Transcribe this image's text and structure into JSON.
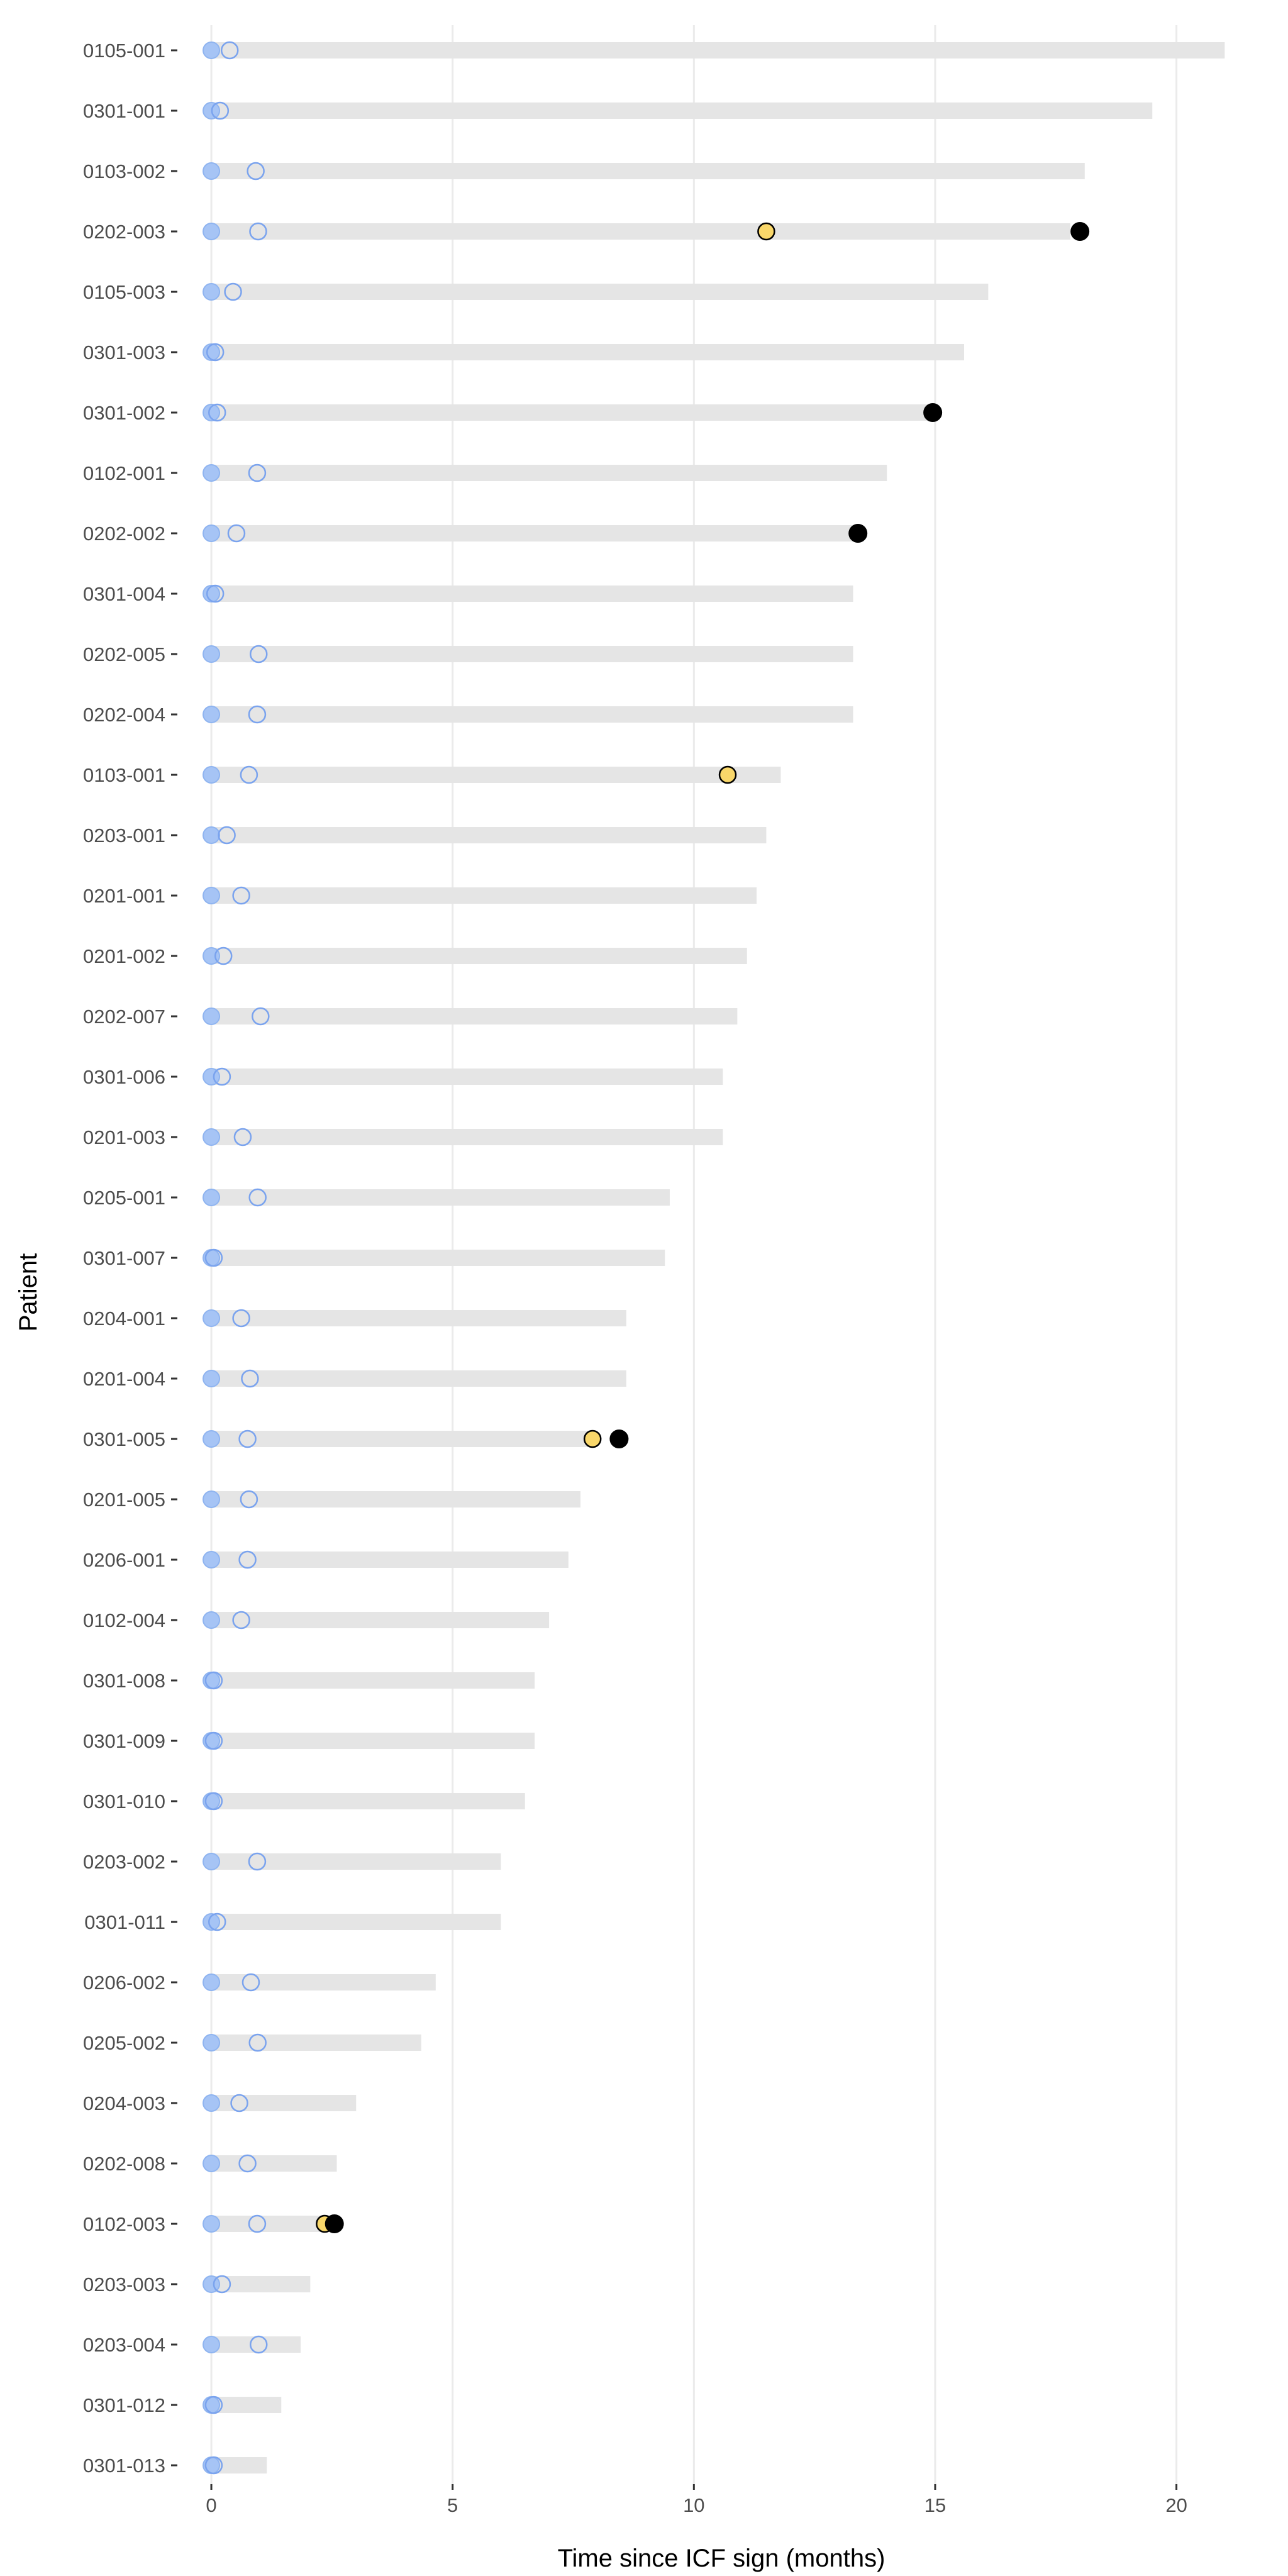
{
  "chart_data": {
    "type": "swimmer",
    "xlabel": "Time since ICF sign (months)",
    "ylabel": "Patient",
    "xlim": [
      -0.6,
      21.1
    ],
    "xticks": [
      0,
      5,
      10,
      15,
      20
    ],
    "grid": "vertical major",
    "legend": "none",
    "colors": {
      "bar": "#e5e5e5",
      "filled_marker": "#a6c4f5",
      "filled_marker_edge": "#8fb4f0",
      "open_marker_edge": "#7aa3ee",
      "event_yellow": "#f9d76a",
      "event_black": "#000000",
      "grid": "#ebebeb",
      "tick_text": "#4d4d4d"
    },
    "patients": [
      {
        "id": "0105-001",
        "duration": 21.0,
        "open_marker": 0.38
      },
      {
        "id": "0301-001",
        "duration": 19.5,
        "open_marker": 0.18
      },
      {
        "id": "0103-002",
        "duration": 18.1,
        "open_marker": 0.92
      },
      {
        "id": "0202-003",
        "duration": 17.8,
        "open_marker": 0.97,
        "yellow": 11.5,
        "black": 18.0
      },
      {
        "id": "0105-003",
        "duration": 16.1,
        "open_marker": 0.45
      },
      {
        "id": "0301-003",
        "duration": 15.6,
        "open_marker": 0.08
      },
      {
        "id": "0301-002",
        "duration": 14.9,
        "open_marker": 0.12,
        "black": 14.95
      },
      {
        "id": "0102-001",
        "duration": 14.0,
        "open_marker": 0.95
      },
      {
        "id": "0202-002",
        "duration": 13.3,
        "open_marker": 0.52,
        "black": 13.4
      },
      {
        "id": "0301-004",
        "duration": 13.3,
        "open_marker": 0.08
      },
      {
        "id": "0202-005",
        "duration": 13.3,
        "open_marker": 0.98
      },
      {
        "id": "0202-004",
        "duration": 13.3,
        "open_marker": 0.95
      },
      {
        "id": "0103-001",
        "duration": 11.8,
        "open_marker": 0.78,
        "yellow": 10.7
      },
      {
        "id": "0203-001",
        "duration": 11.5,
        "open_marker": 0.32
      },
      {
        "id": "0201-001",
        "duration": 11.3,
        "open_marker": 0.62
      },
      {
        "id": "0201-002",
        "duration": 11.1,
        "open_marker": 0.25
      },
      {
        "id": "0202-007",
        "duration": 10.9,
        "open_marker": 1.02
      },
      {
        "id": "0301-006",
        "duration": 10.6,
        "open_marker": 0.22
      },
      {
        "id": "0201-003",
        "duration": 10.6,
        "open_marker": 0.65
      },
      {
        "id": "0205-001",
        "duration": 9.5,
        "open_marker": 0.96
      },
      {
        "id": "0301-007",
        "duration": 9.4,
        "open_marker": 0.05
      },
      {
        "id": "0204-001",
        "duration": 8.6,
        "open_marker": 0.62
      },
      {
        "id": "0201-004",
        "duration": 8.6,
        "open_marker": 0.8
      },
      {
        "id": "0301-005",
        "duration": 7.8,
        "open_marker": 0.75,
        "yellow": 7.9,
        "black": 8.45
      },
      {
        "id": "0201-005",
        "duration": 7.65,
        "open_marker": 0.78
      },
      {
        "id": "0206-001",
        "duration": 7.4,
        "open_marker": 0.75
      },
      {
        "id": "0102-004",
        "duration": 7.0,
        "open_marker": 0.62
      },
      {
        "id": "0301-008",
        "duration": 6.7,
        "open_marker": 0.05
      },
      {
        "id": "0301-009",
        "duration": 6.7,
        "open_marker": 0.05
      },
      {
        "id": "0301-010",
        "duration": 6.5,
        "open_marker": 0.05
      },
      {
        "id": "0203-002",
        "duration": 6.0,
        "open_marker": 0.95
      },
      {
        "id": "0301-011",
        "duration": 6.0,
        "open_marker": 0.12
      },
      {
        "id": "0206-002",
        "duration": 4.65,
        "open_marker": 0.82
      },
      {
        "id": "0205-002",
        "duration": 4.35,
        "open_marker": 0.96
      },
      {
        "id": "0204-003",
        "duration": 3.0,
        "open_marker": 0.58
      },
      {
        "id": "0202-008",
        "duration": 2.6,
        "open_marker": 0.75
      },
      {
        "id": "0102-003",
        "duration": 2.4,
        "open_marker": 0.95,
        "yellow": 2.35,
        "black": 2.55
      },
      {
        "id": "0203-003",
        "duration": 2.05,
        "open_marker": 0.22
      },
      {
        "id": "0203-004",
        "duration": 1.85,
        "open_marker": 0.98
      },
      {
        "id": "0301-012",
        "duration": 1.45,
        "open_marker": 0.05
      },
      {
        "id": "0301-013",
        "duration": 1.15,
        "open_marker": 0.05
      }
    ]
  }
}
